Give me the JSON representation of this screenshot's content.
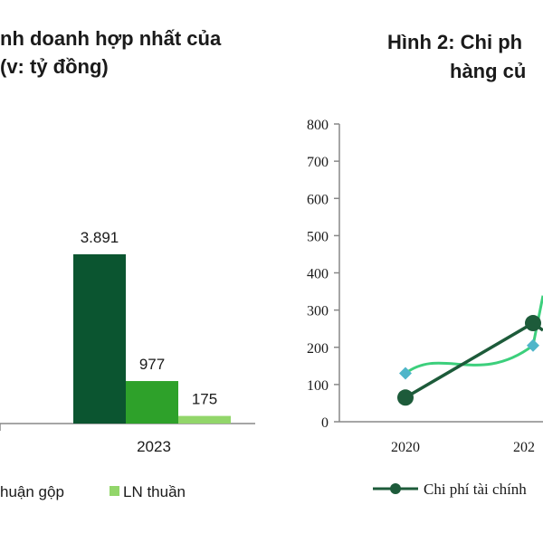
{
  "left_chart": {
    "title_line1": "nh doanh hợp nhất của",
    "title_line2": "(v: tỷ đồng)",
    "category_label": "2023",
    "legend": [
      {
        "label": "huận gộp",
        "color": "#2ea12a"
      },
      {
        "label": "LN thuần",
        "color": "#92d66a"
      }
    ]
  },
  "right_chart": {
    "title_line1": "Hình 2: Chi ph",
    "title_line2": "hàng củ",
    "legend": [
      {
        "label": "Chi phí tài chính",
        "color": "#1d5b3a"
      }
    ]
  },
  "chart_data": [
    {
      "type": "bar",
      "title": "nh doanh hợp nhất của (v: tỷ đồng)",
      "categories": [
        "2023"
      ],
      "series": [
        {
          "values": [
            3891
          ],
          "color": "#0b5530"
        },
        {
          "name": "huận gộp",
          "values": [
            977
          ],
          "color": "#2ea12a"
        },
        {
          "name": "LN thuần",
          "values": [
            175
          ],
          "color": "#92d66a"
        }
      ],
      "data_labels": [
        "3.891",
        "977",
        "175"
      ]
    },
    {
      "type": "line",
      "title": "Hình 2: Chi ph hàng củ",
      "x": [
        "2020",
        "202"
      ],
      "ylim": [
        0,
        800
      ],
      "yticks": [
        0,
        100,
        200,
        300,
        400,
        500,
        600,
        700,
        800
      ],
      "series": [
        {
          "name": "Chi phí tài chính",
          "values": [
            65,
            265
          ],
          "color": "#1d5b3a",
          "marker": "circle"
        },
        {
          "values": [
            130,
            205
          ],
          "color": "#3ccf7c",
          "marker": "diamond",
          "marker_color": "#4fb5c9"
        }
      ]
    }
  ]
}
